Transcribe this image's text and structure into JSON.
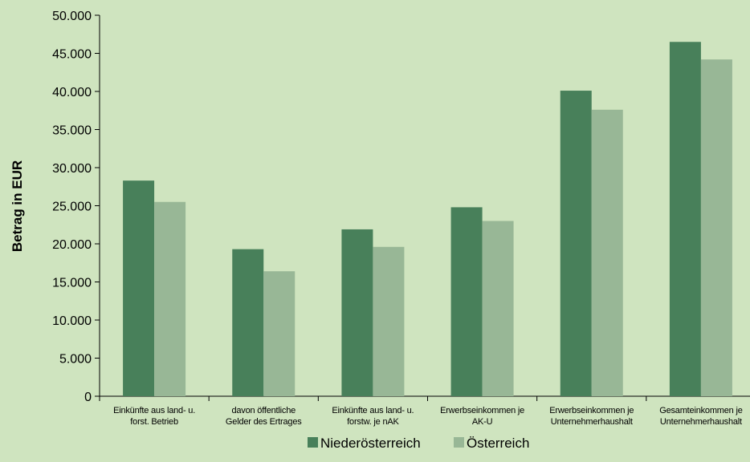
{
  "chart_data": {
    "type": "bar",
    "title": "",
    "xlabel": "",
    "ylabel": "Betrag in EUR",
    "ylim": [
      0,
      50000
    ],
    "yticks": [
      0,
      5000,
      10000,
      15000,
      20000,
      25000,
      30000,
      35000,
      40000,
      45000,
      50000
    ],
    "ytick_labels": [
      "0",
      "5.000",
      "10.000",
      "15.000",
      "20.000",
      "25.000",
      "30.000",
      "35.000",
      "40.000",
      "45.000",
      "50.000"
    ],
    "categories": [
      [
        "Einkünfte aus land- u.",
        "forst. Betrieb"
      ],
      [
        "davon öffentliche",
        "Gelder des Ertrages"
      ],
      [
        "Einkünfte aus land- u.",
        "forstw. je nAK"
      ],
      [
        "Erwerbseinkommen je",
        "AK-U"
      ],
      [
        "Erwerbseinkommen je",
        "Unternehmerhaushalt"
      ],
      [
        "Gesamteinkommen je",
        "Unternehmerhaushalt"
      ]
    ],
    "series": [
      {
        "name": "Niederösterreich",
        "color": "#48805a",
        "values": [
          28300,
          19300,
          21900,
          24800,
          40100,
          46500
        ]
      },
      {
        "name": "Österreich",
        "color": "#98b796",
        "values": [
          25500,
          16400,
          19600,
          23000,
          37600,
          44200
        ]
      }
    ],
    "grid": false,
    "legend_position": "bottom"
  }
}
